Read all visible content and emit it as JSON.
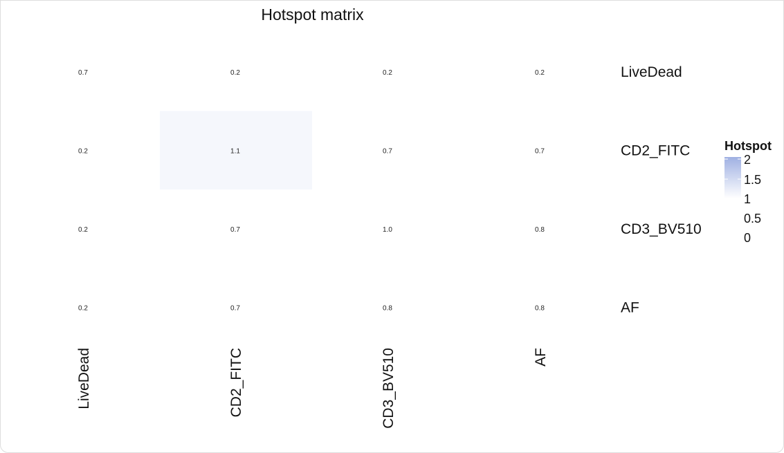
{
  "chart_data": {
    "type": "heatmap",
    "title": "Hotspot matrix",
    "rows": [
      "LiveDead",
      "CD2_FITC",
      "CD3_BV510",
      "AF"
    ],
    "columns": [
      "LiveDead",
      "CD2_FITC",
      "CD3_BV510",
      "AF"
    ],
    "values": [
      [
        0.7,
        0.2,
        0.2,
        0.2
      ],
      [
        0.2,
        1.1,
        0.7,
        0.7
      ],
      [
        0.2,
        0.7,
        1.0,
        0.8
      ],
      [
        0.2,
        0.7,
        0.8,
        0.8
      ]
    ],
    "value_labels": [
      [
        "0.7",
        "0.2",
        "0.2",
        "0.2"
      ],
      [
        "0.2",
        "1.1",
        "0.7",
        "0.7"
      ],
      [
        "0.2",
        "0.7",
        "1.0",
        "0.8"
      ],
      [
        "0.2",
        "0.7",
        "0.8",
        "0.8"
      ]
    ],
    "legend": {
      "title": "Hotspot",
      "ticks": [
        "2",
        "1.5",
        "1",
        "0.5",
        "0"
      ],
      "range": [
        1,
        2
      ],
      "low_color": "#ffffff",
      "high_color": "#9fb0e2",
      "placement": "right"
    },
    "grid": false
  }
}
